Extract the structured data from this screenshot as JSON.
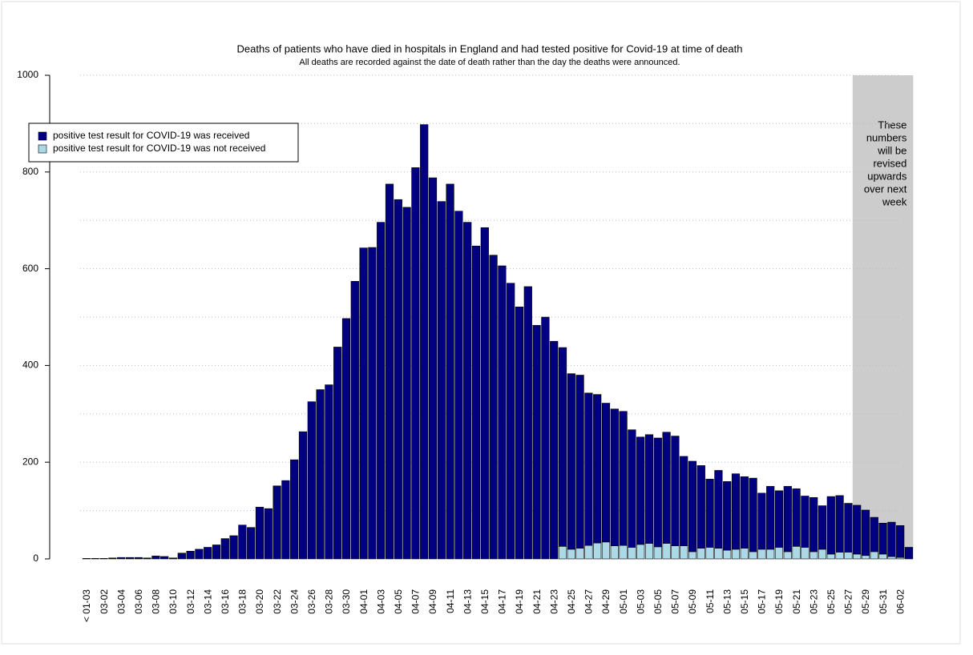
{
  "chart_data": {
    "type": "stacked_bar",
    "title": "Deaths of patients who have died in hospitals in England and had tested positive for Covid-19 at time of death",
    "subtitle": "All deaths are recorded against the date of death rather than the day the deaths were announced.",
    "categories": [
      "< 01-03",
      null,
      "03-02",
      null,
      "03-04",
      null,
      "03-06",
      null,
      "03-08",
      null,
      "03-10",
      null,
      "03-12",
      null,
      "03-14",
      null,
      "03-16",
      null,
      "03-18",
      null,
      "03-20",
      null,
      "03-22",
      null,
      "03-24",
      null,
      "03-26",
      null,
      "03-28",
      null,
      "03-30",
      null,
      "04-01",
      null,
      "04-03",
      null,
      "04-05",
      null,
      "04-07",
      null,
      "04-09",
      null,
      "04-11",
      null,
      "04-13",
      null,
      "04-15",
      null,
      "04-17",
      null,
      "04-19",
      null,
      "04-21",
      null,
      "04-23",
      null,
      "04-25",
      null,
      "04-27",
      null,
      "04-29",
      null,
      "05-01",
      null,
      "05-03",
      null,
      "05-05",
      null,
      "05-07",
      null,
      "05-09",
      null,
      "05-11",
      null,
      "05-13",
      null,
      "05-15",
      null,
      "05-17",
      null,
      "05-19",
      null,
      "05-21",
      null,
      "05-23",
      null,
      "05-25",
      null,
      "05-27",
      null,
      "05-29",
      null,
      "05-31",
      null,
      "06-02",
      null
    ],
    "series": [
      {
        "name": "positive test result for COVID-19 was not received",
        "color": "#add8e6",
        "values": [
          0,
          0,
          0,
          0,
          0,
          0,
          0,
          0,
          0,
          0,
          0,
          0,
          0,
          0,
          0,
          0,
          0,
          0,
          0,
          0,
          0,
          0,
          0,
          0,
          0,
          0,
          0,
          0,
          0,
          0,
          0,
          0,
          0,
          0,
          0,
          0,
          0,
          0,
          0,
          0,
          0,
          0,
          0,
          0,
          0,
          0,
          0,
          0,
          0,
          0,
          0,
          0,
          0,
          0,
          0,
          26,
          20,
          22,
          28,
          33,
          35,
          27,
          28,
          24,
          30,
          32,
          25,
          32,
          27,
          27,
          15,
          22,
          24,
          22,
          18,
          20,
          22,
          15,
          20,
          20,
          24,
          15,
          26,
          24,
          15,
          20,
          10,
          14,
          14,
          10,
          7,
          15,
          10,
          5,
          3,
          0
        ]
      },
      {
        "name": "positive test result for COVID-19 was received",
        "color": "#000080",
        "values": [
          1,
          1,
          1,
          2,
          3,
          3,
          3,
          2,
          6,
          5,
          2,
          12,
          16,
          20,
          24,
          29,
          42,
          48,
          70,
          65,
          107,
          104,
          151,
          162,
          205,
          263,
          325,
          350,
          360,
          438,
          497,
          574,
          643,
          644,
          696,
          775,
          743,
          727,
          809,
          898,
          788,
          739,
          775,
          719,
          696,
          647,
          685,
          628,
          606,
          570,
          521,
          563,
          483,
          500,
          450,
          411,
          363,
          358,
          315,
          307,
          287,
          283,
          277,
          243,
          222,
          225,
          225,
          230,
          227,
          185,
          187,
          171,
          141,
          161,
          142,
          156,
          148,
          152,
          116,
          130,
          117,
          135,
          119,
          106,
          112,
          90,
          119,
          117,
          101,
          101,
          94,
          71,
          64,
          71,
          66,
          24
        ]
      }
    ],
    "legend_order": [
      1,
      0
    ],
    "legend": "top-left",
    "ylim": [
      0,
      1000
    ],
    "yticks": [
      0,
      200,
      400,
      600,
      800,
      1000
    ],
    "ygrid": [
      100,
      200,
      300,
      400,
      500,
      600,
      700,
      800,
      900,
      1000
    ],
    "annotation": [
      "These",
      "numbers",
      "will be",
      "revised",
      "upwards",
      "over next",
      "week"
    ]
  }
}
